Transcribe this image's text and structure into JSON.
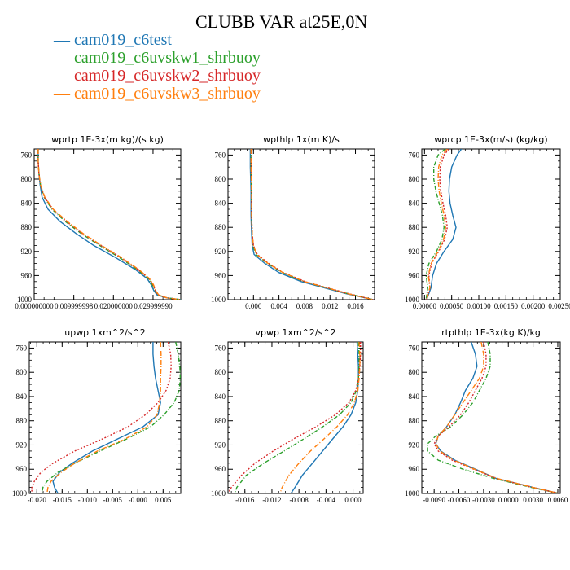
{
  "title": "CLUBB VAR at25E,0N",
  "legend": [
    {
      "label": "cam019_c6test",
      "color": "#1f77b4"
    },
    {
      "label": "cam019_c6uvskw1_shrbuoy",
      "color": "#2ca02c"
    },
    {
      "label": "cam019_c6uvskw2_shrbuoy",
      "color": "#d62728"
    },
    {
      "label": "cam019_c6uvskw3_shrbuoy",
      "color": "#ff7f0e"
    }
  ],
  "chart_data": [
    {
      "type": "line",
      "title": "wprtp  1E-3x(m kg)/(s kg)",
      "xlim": [
        0,
        0.037
      ],
      "ylim": [
        1000,
        750
      ],
      "xticks": [
        0,
        0.01,
        0.02,
        0.03
      ],
      "xtick_labels": [
        "0.000000000",
        "0.009999998",
        "0.020000000",
        "0.029999990"
      ],
      "yticks": [
        760,
        800,
        840,
        880,
        920,
        960,
        1000
      ],
      "levels": [
        750,
        770,
        790,
        810,
        830,
        850,
        870,
        890,
        910,
        930,
        950,
        965,
        975,
        985,
        992,
        997,
        1000
      ],
      "series": [
        {
          "name": "cam019_c6test",
          "color": "#1f77b4",
          "dash": "",
          "x": [
            0.001,
            0.001,
            0.0012,
            0.0015,
            0.002,
            0.0035,
            0.0065,
            0.0105,
            0.015,
            0.0205,
            0.0255,
            0.0285,
            0.0295,
            0.0302,
            0.031,
            0.0335,
            0.037
          ]
        },
        {
          "name": "cam019_c6uvskw1_shrbuoy",
          "color": "#2ca02c",
          "dash": "5,2,1,2",
          "x": [
            0.001,
            0.001,
            0.0012,
            0.0016,
            0.0025,
            0.0045,
            0.0078,
            0.0118,
            0.0165,
            0.0215,
            0.026,
            0.0288,
            0.0298,
            0.0305,
            0.0312,
            0.0335,
            0.037
          ]
        },
        {
          "name": "cam019_c6uvskw2_shrbuoy",
          "color": "#d62728",
          "dash": "2,2",
          "x": [
            0.001,
            0.001,
            0.0012,
            0.0016,
            0.0026,
            0.0047,
            0.0081,
            0.0121,
            0.0168,
            0.0218,
            0.0262,
            0.029,
            0.03,
            0.0306,
            0.0313,
            0.0335,
            0.037
          ]
        },
        {
          "name": "cam019_c6uvskw3_shrbuoy",
          "color": "#ff7f0e",
          "dash": "6,2,1,2",
          "x": [
            0.001,
            0.001,
            0.0012,
            0.0016,
            0.0027,
            0.0048,
            0.0083,
            0.0123,
            0.017,
            0.022,
            0.0264,
            0.0291,
            0.0301,
            0.0307,
            0.0314,
            0.0335,
            0.037
          ]
        }
      ]
    },
    {
      "type": "line",
      "title": "wpthlp  1x(m K)/s",
      "xlim": [
        -0.004,
        0.019
      ],
      "ylim": [
        1000,
        750
      ],
      "xticks": [
        0,
        0.004,
        0.008,
        0.012,
        0.016
      ],
      "xtick_labels": [
        "0.000",
        "0.004",
        "0.008",
        "0.012",
        "0.016"
      ],
      "yticks": [
        760,
        800,
        840,
        880,
        920,
        960,
        1000
      ],
      "levels": [
        750,
        780,
        820,
        860,
        890,
        910,
        925,
        940,
        955,
        970,
        980,
        990,
        1000
      ],
      "series": [
        {
          "name": "cam019_c6test",
          "color": "#1f77b4",
          "dash": "",
          "x": [
            -0.0005,
            -0.0005,
            -0.0004,
            -0.0004,
            -0.0003,
            -0.0002,
            0.0001,
            0.0018,
            0.004,
            0.0075,
            0.011,
            0.0145,
            0.0188
          ]
        },
        {
          "name": "cam019_c6uvskw1_shrbuoy",
          "color": "#2ca02c",
          "dash": "5,2,1,2",
          "x": [
            -0.0004,
            -0.0004,
            -0.0003,
            -0.0003,
            -0.0002,
            -0.0001,
            0.0004,
            0.0022,
            0.0045,
            0.0079,
            0.0113,
            0.0148,
            0.0188
          ]
        },
        {
          "name": "cam019_c6uvskw2_shrbuoy",
          "color": "#d62728",
          "dash": "2,2",
          "x": [
            -0.0003,
            -0.0003,
            -0.0003,
            -0.0003,
            -0.0002,
            0,
            0.0006,
            0.0024,
            0.0047,
            0.0081,
            0.0115,
            0.0149,
            0.0188
          ]
        },
        {
          "name": "cam019_c6uvskw3_shrbuoy",
          "color": "#ff7f0e",
          "dash": "6,2,1,2",
          "x": [
            -0.0004,
            -0.0004,
            -0.0003,
            -0.0003,
            -0.0002,
            0,
            0.0005,
            0.0023,
            0.0046,
            0.008,
            0.0114,
            0.0148,
            0.0188
          ]
        }
      ]
    },
    {
      "type": "line",
      "title": "wprcp  1E-3x(m/s) (kg/kg)",
      "xlim": [
        -5e-05,
        0.0025
      ],
      "ylim": [
        1000,
        750
      ],
      "xticks": [
        0,
        0.0005,
        0.001,
        0.0015,
        0.002,
        0.0025
      ],
      "xtick_labels": [
        "0.00000",
        "0.00050",
        "0.00100",
        "0.00150",
        "0.00200",
        "0.00250"
      ],
      "yticks": [
        760,
        800,
        840,
        880,
        920,
        960,
        1000
      ],
      "levels": [
        750,
        760,
        780,
        800,
        820,
        840,
        860,
        880,
        900,
        920,
        940,
        960,
        980,
        1000
      ],
      "series": [
        {
          "name": "cam019_c6test",
          "color": "#1f77b4",
          "dash": "",
          "x": [
            0.00068,
            0.0006,
            0.0005,
            0.00046,
            0.00045,
            0.00047,
            0.00052,
            0.00058,
            0.00052,
            0.00036,
            0.00022,
            0.00015,
            0.00012,
            4e-05
          ]
        },
        {
          "name": "cam019_c6uvskw1_shrbuoy",
          "color": "#2ca02c",
          "dash": "5,2,1,2",
          "x": [
            0.00038,
            0.00025,
            0.00017,
            0.00017,
            0.00021,
            0.00027,
            0.00033,
            0.00036,
            0.00032,
            0.00022,
            8e-05,
            3e-05,
            6e-05,
            3e-05
          ]
        },
        {
          "name": "cam019_c6uvskw2_shrbuoy",
          "color": "#d62728",
          "dash": "2,2",
          "x": [
            0.00045,
            0.00036,
            0.00029,
            0.00028,
            0.0003,
            0.00034,
            0.00039,
            0.00042,
            0.00037,
            0.00026,
            0.00013,
            8e-05,
            0.0001,
            4e-05
          ]
        },
        {
          "name": "cam019_c6uvskw3_shrbuoy",
          "color": "#ff7f0e",
          "dash": "6,2,1,2",
          "x": [
            0.00042,
            0.00032,
            0.00026,
            0.00025,
            0.00027,
            0.00031,
            0.00036,
            0.00039,
            0.00035,
            0.00025,
            0.00012,
            7e-05,
            0.0001,
            4e-05
          ]
        }
      ]
    },
    {
      "type": "line",
      "title": "upwp  1xm^2/s^2",
      "xlim": [
        -0.0215,
        0.0085
      ],
      "ylim": [
        1000,
        750
      ],
      "xticks": [
        -0.02,
        -0.015,
        -0.01,
        -0.005,
        0,
        0.005
      ],
      "xtick_labels": [
        "-0.020",
        "-0.015",
        "-0.010",
        "-0.005",
        "-0.000",
        "0.005"
      ],
      "yticks": [
        760,
        800,
        840,
        880,
        920,
        960,
        1000
      ],
      "levels": [
        750,
        770,
        790,
        810,
        830,
        850,
        870,
        890,
        910,
        930,
        950,
        965,
        980,
        990,
        1000
      ],
      "series": [
        {
          "name": "cam019_c6test",
          "color": "#1f77b4",
          "dash": "",
          "x": [
            0.003,
            0.003,
            0.0032,
            0.0035,
            0.004,
            0.0045,
            0.004,
            0.001,
            -0.004,
            -0.009,
            -0.013,
            -0.0155,
            -0.0168,
            -0.0165,
            -0.0158
          ]
        },
        {
          "name": "cam019_c6uvskw1_shrbuoy",
          "color": "#2ca02c",
          "dash": "5,2,1,2",
          "x": [
            0.0075,
            0.008,
            0.0083,
            0.0084,
            0.0082,
            0.0072,
            0.0052,
            0.0025,
            -0.0022,
            -0.0075,
            -0.0125,
            -0.0158,
            -0.018,
            -0.0188,
            -0.019
          ]
        },
        {
          "name": "cam019_c6uvskw2_shrbuoy",
          "color": "#d62728",
          "dash": "2,2",
          "x": [
            0.006,
            0.0065,
            0.0066,
            0.0064,
            0.0056,
            0.004,
            0.0015,
            -0.002,
            -0.007,
            -0.0125,
            -0.0168,
            -0.0192,
            -0.0205,
            -0.021,
            -0.021
          ]
        },
        {
          "name": "cam019_c6uvskw3_shrbuoy",
          "color": "#ff7f0e",
          "dash": "6,2,1,2",
          "x": [
            0.0045,
            0.0046,
            0.0046,
            0.0045,
            0.0045,
            0.0043,
            0.0038,
            0.0018,
            -0.0025,
            -0.008,
            -0.0125,
            -0.0152,
            -0.0172,
            -0.0178,
            -0.018
          ]
        }
      ]
    },
    {
      "type": "line",
      "title": "vpwp  1xm^2/s^2",
      "xlim": [
        -0.0185,
        0.0015
      ],
      "ylim": [
        1000,
        750
      ],
      "xticks": [
        -0.016,
        -0.012,
        -0.008,
        -0.004,
        0
      ],
      "xtick_labels": [
        "-0.016",
        "-0.012",
        "-0.008",
        "-0.004",
        "0.000"
      ],
      "yticks": [
        760,
        800,
        840,
        880,
        920,
        960,
        1000
      ],
      "levels": [
        750,
        770,
        790,
        810,
        830,
        850,
        870,
        890,
        910,
        930,
        950,
        970,
        990,
        1000
      ],
      "series": [
        {
          "name": "cam019_c6test",
          "color": "#1f77b4",
          "dash": "",
          "x": [
            0.0006,
            0.0007,
            0.0008,
            0.0008,
            0.0007,
            0.0004,
            -0.0003,
            -0.0015,
            -0.003,
            -0.0045,
            -0.006,
            -0.0075,
            -0.0086,
            -0.0092
          ]
        },
        {
          "name": "cam019_c6uvskw1_shrbuoy",
          "color": "#2ca02c",
          "dash": "5,2,1,2",
          "x": [
            0.0008,
            0.0009,
            0.0009,
            0.0008,
            0.0005,
            -0.0003,
            -0.002,
            -0.0045,
            -0.0073,
            -0.0102,
            -0.0132,
            -0.0158,
            -0.0172,
            -0.0175
          ]
        },
        {
          "name": "cam019_c6uvskw2_shrbuoy",
          "color": "#d62728",
          "dash": "2,2",
          "x": [
            0.0011,
            0.0011,
            0.001,
            0.0008,
            0.0004,
            -0.0006,
            -0.0026,
            -0.0055,
            -0.0088,
            -0.0118,
            -0.0145,
            -0.0165,
            -0.018,
            -0.0185
          ]
        },
        {
          "name": "cam019_c6uvskw3_shrbuoy",
          "color": "#ff7f0e",
          "dash": "6,2,1,2",
          "x": [
            0.0009,
            0.001,
            0.001,
            0.0009,
            0.0007,
            0.0002,
            -0.0008,
            -0.0024,
            -0.0043,
            -0.0063,
            -0.008,
            -0.0095,
            -0.0105,
            -0.0108
          ]
        }
      ]
    },
    {
      "type": "line",
      "title": "rtpthlp  1E-3x(kg K)/kg",
      "xlim": [
        -0.0105,
        0.0063
      ],
      "ylim": [
        1000,
        750
      ],
      "xticks": [
        -0.009,
        -0.006,
        -0.003,
        0,
        0.003,
        0.006
      ],
      "xtick_labels": [
        "-0.0090",
        "-0.0060",
        "-0.0030",
        "0.0000",
        "0.0030",
        "0.0060"
      ],
      "yticks": [
        760,
        800,
        840,
        880,
        920,
        960,
        1000
      ],
      "levels": [
        750,
        770,
        790,
        810,
        830,
        850,
        870,
        890,
        905,
        918,
        930,
        945,
        960,
        975,
        990,
        1000
      ],
      "series": [
        {
          "name": "cam019_c6test",
          "color": "#1f77b4",
          "dash": "",
          "x": [
            -0.0045,
            -0.004,
            -0.0038,
            -0.0043,
            -0.0052,
            -0.0058,
            -0.0065,
            -0.0075,
            -0.0085,
            -0.0088,
            -0.0082,
            -0.0065,
            -0.004,
            -0.0015,
            0.003,
            0.0062
          ]
        },
        {
          "name": "cam019_c6uvskw1_shrbuoy",
          "color": "#2ca02c",
          "dash": "5,2,1,2",
          "x": [
            -0.0025,
            -0.0022,
            -0.0022,
            -0.0027,
            -0.0035,
            -0.0043,
            -0.0055,
            -0.007,
            -0.0088,
            -0.0098,
            -0.0098,
            -0.0085,
            -0.0055,
            -0.0018,
            0.0028,
            0.0062
          ]
        },
        {
          "name": "cam019_c6uvskw2_shrbuoy",
          "color": "#d62728",
          "dash": "2,2",
          "x": [
            -0.003,
            -0.0027,
            -0.0027,
            -0.0032,
            -0.004,
            -0.0048,
            -0.0058,
            -0.0072,
            -0.0085,
            -0.009,
            -0.0085,
            -0.0068,
            -0.0042,
            -0.0015,
            0.003,
            0.0062
          ]
        },
        {
          "name": "cam019_c6uvskw3_shrbuoy",
          "color": "#ff7f0e",
          "dash": "6,2,1,2",
          "x": [
            -0.0033,
            -0.003,
            -0.003,
            -0.0035,
            -0.0045,
            -0.0055,
            -0.0065,
            -0.0075,
            -0.0085,
            -0.0088,
            -0.0083,
            -0.0066,
            -0.0041,
            -0.0014,
            0.003,
            0.0062
          ]
        }
      ]
    }
  ]
}
